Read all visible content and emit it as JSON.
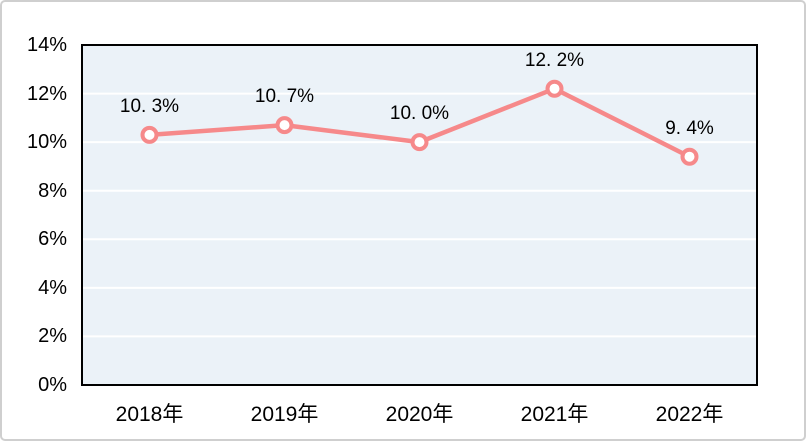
{
  "chart_data": {
    "type": "line",
    "categories": [
      "2018年",
      "2019年",
      "2020年",
      "2021年",
      "2022年"
    ],
    "values": [
      10.3,
      10.7,
      10.0,
      12.2,
      9.4
    ],
    "data_labels": [
      "10. 3%",
      "10. 7%",
      "10. 0%",
      "12. 2%",
      "9. 4%"
    ],
    "y_ticks": [
      0,
      2,
      4,
      6,
      8,
      10,
      12,
      14
    ],
    "y_tick_labels": [
      "0%",
      "2%",
      "4%",
      "6%",
      "8%",
      "10%",
      "12%",
      "14%"
    ],
    "ylim": [
      0,
      14
    ],
    "title": "",
    "xlabel": "",
    "ylabel": "",
    "legend": "none",
    "grid": "horizontal-white-lines",
    "marker": "open-circle"
  },
  "colors": {
    "line": "#F6898A",
    "marker_fill": "#FFFFFF",
    "marker_stroke": "#F6898A",
    "plot_background": "#EBF2F8",
    "gridline": "#FFFFFF",
    "plot_border": "#000000",
    "outer_border": "#CFCFCF",
    "background": "#FFFFFF",
    "text": "#000000"
  }
}
